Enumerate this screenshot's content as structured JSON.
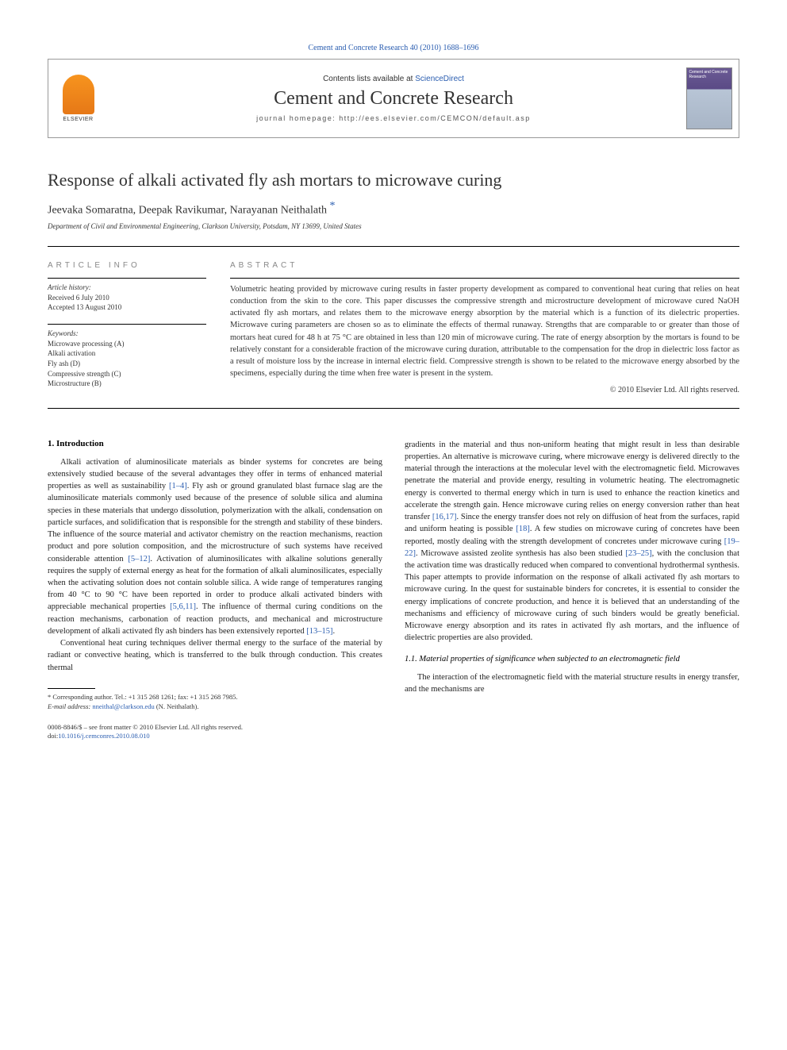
{
  "journal_ref": "Cement and Concrete Research 40 (2010) 1688–1696",
  "header": {
    "contents_prefix": "Contents lists available at ",
    "contents_link": "ScienceDirect",
    "journal_name": "Cement and Concrete Research",
    "homepage_prefix": "journal homepage: ",
    "homepage_url": "http://ees.elsevier.com/CEMCON/default.asp",
    "elsevier_label": "ELSEVIER",
    "cover_text": "Cement and Concrete Research"
  },
  "article": {
    "title": "Response of alkali activated fly ash mortars to microwave curing",
    "authors": "Jeevaka Somaratna, Deepak Ravikumar, Narayanan Neithalath ",
    "corr_mark": "*",
    "affiliation": "Department of Civil and Environmental Engineering, Clarkson University, Potsdam, NY 13699, United States"
  },
  "info": {
    "section_label": "ARTICLE INFO",
    "history_heading": "Article history:",
    "received": "Received 6 July 2010",
    "accepted": "Accepted 13 August 2010",
    "keywords_heading": "Keywords:",
    "keywords": [
      "Microwave processing (A)",
      "Alkali activation",
      "Fly ash (D)",
      "Compressive strength (C)",
      "Microstructure (B)"
    ]
  },
  "abstract": {
    "section_label": "ABSTRACT",
    "text": "Volumetric heating provided by microwave curing results in faster property development as compared to conventional heat curing that relies on heat conduction from the skin to the core. This paper discusses the compressive strength and microstructure development of microwave cured NaOH activated fly ash mortars, and relates them to the microwave energy absorption by the material which is a function of its dielectric properties. Microwave curing parameters are chosen so as to eliminate the effects of thermal runaway. Strengths that are comparable to or greater than those of mortars heat cured for 48 h at 75 °C are obtained in less than 120 min of microwave curing. The rate of energy absorption by the mortars is found to be relatively constant for a considerable fraction of the microwave curing duration, attributable to the compensation for the drop in dielectric loss factor as a result of moisture loss by the increase in internal electric field. Compressive strength is shown to be related to the microwave energy absorbed by the specimens, especially during the time when free water is present in the system.",
    "copyright": "© 2010 Elsevier Ltd. All rights reserved."
  },
  "body": {
    "intro_heading": "1. Introduction",
    "p1a": "Alkali activation of aluminosilicate materials as binder systems for concretes are being extensively studied because of the several advantages they offer in terms of enhanced material properties as well as sustainability ",
    "c1": "[1–4]",
    "p1b": ". Fly ash or ground granulated blast furnace slag are the aluminosilicate materials commonly used because of the presence of soluble silica and alumina species in these materials that undergo dissolution, polymerization with the alkali, condensation on particle surfaces, and solidification that is responsible for the strength and stability of these binders. The influence of the source material and activator chemistry on the reaction mechanisms, reaction product and pore solution composition, and the microstructure of such systems have received considerable attention ",
    "c2": "[5–12]",
    "p1c": ". Activation of aluminosilicates with alkaline solutions generally requires the supply of external energy as heat for the formation of alkali aluminosilicates, especially when the activating solution does not contain soluble silica. A wide range of temperatures ranging from 40 °C to 90 °C have been reported in order to produce alkali activated binders with appreciable mechanical properties ",
    "c3": "[5,6,11]",
    "p1d": ". The influence of thermal curing conditions on the reaction mechanisms, carbonation of reaction products, and mechanical and microstructure development of alkali activated fly ash binders has been extensively reported ",
    "c4": "[13–15]",
    "p1e": ".",
    "p2": "Conventional heat curing techniques deliver thermal energy to the surface of the material by radiant or convective heating, which is transferred to the bulk through conduction. This creates thermal",
    "p3a": "gradients in the material and thus non-uniform heating that might result in less than desirable properties. An alternative is microwave curing, where microwave energy is delivered directly to the material through the interactions at the molecular level with the electromagnetic field. Microwaves penetrate the material and provide energy, resulting in volumetric heating. The electromagnetic energy is converted to thermal energy which in turn is used to enhance the reaction kinetics and accelerate the strength gain. Hence microwave curing relies on energy conversion rather than heat transfer ",
    "c5": "[16,17]",
    "p3b": ". Since the energy transfer does not rely on diffusion of heat from the surfaces, rapid and uniform heating is possible ",
    "c6": "[18]",
    "p3c": ". A few studies on microwave curing of concretes have been reported, mostly dealing with the strength development of concretes under microwave curing ",
    "c7": "[19–22]",
    "p3d": ". Microwave assisted zeolite synthesis has also been studied ",
    "c8": "[23–25]",
    "p3e": ", with the conclusion that the activation time was drastically reduced when compared to conventional hydrothermal synthesis. This paper attempts to provide information on the response of alkali activated fly ash mortars to microwave curing. In the quest for sustainable binders for concretes, it is essential to consider the energy implications of concrete production, and hence it is believed that an understanding of the mechanisms and efficiency of microwave curing of such binders would be greatly beneficial. Microwave energy absorption and its rates in activated fly ash mortars, and the influence of dielectric properties are also provided.",
    "sub11": "1.1. Material properties of significance when subjected to an electromagnetic field",
    "p4": "The interaction of the electromagnetic field with the material structure results in energy transfer, and the mechanisms are"
  },
  "footnote": {
    "corr": "* Corresponding author. Tel.: +1 315 268 1261; fax: +1 315 268 7985.",
    "email_label": "E-mail address: ",
    "email": "nneithal@clarkson.edu",
    "email_suffix": " (N. Neithalath)."
  },
  "footer": {
    "line1": "0008-8846/$ – see front matter © 2010 Elsevier Ltd. All rights reserved.",
    "doi_prefix": "doi:",
    "doi": "10.1016/j.cemconres.2010.08.010"
  },
  "colors": {
    "link": "#2a5db0",
    "text": "#333333",
    "rule": "#000000",
    "elsevier_orange": "#f7941e",
    "cover_purple": "#6b5b95"
  }
}
